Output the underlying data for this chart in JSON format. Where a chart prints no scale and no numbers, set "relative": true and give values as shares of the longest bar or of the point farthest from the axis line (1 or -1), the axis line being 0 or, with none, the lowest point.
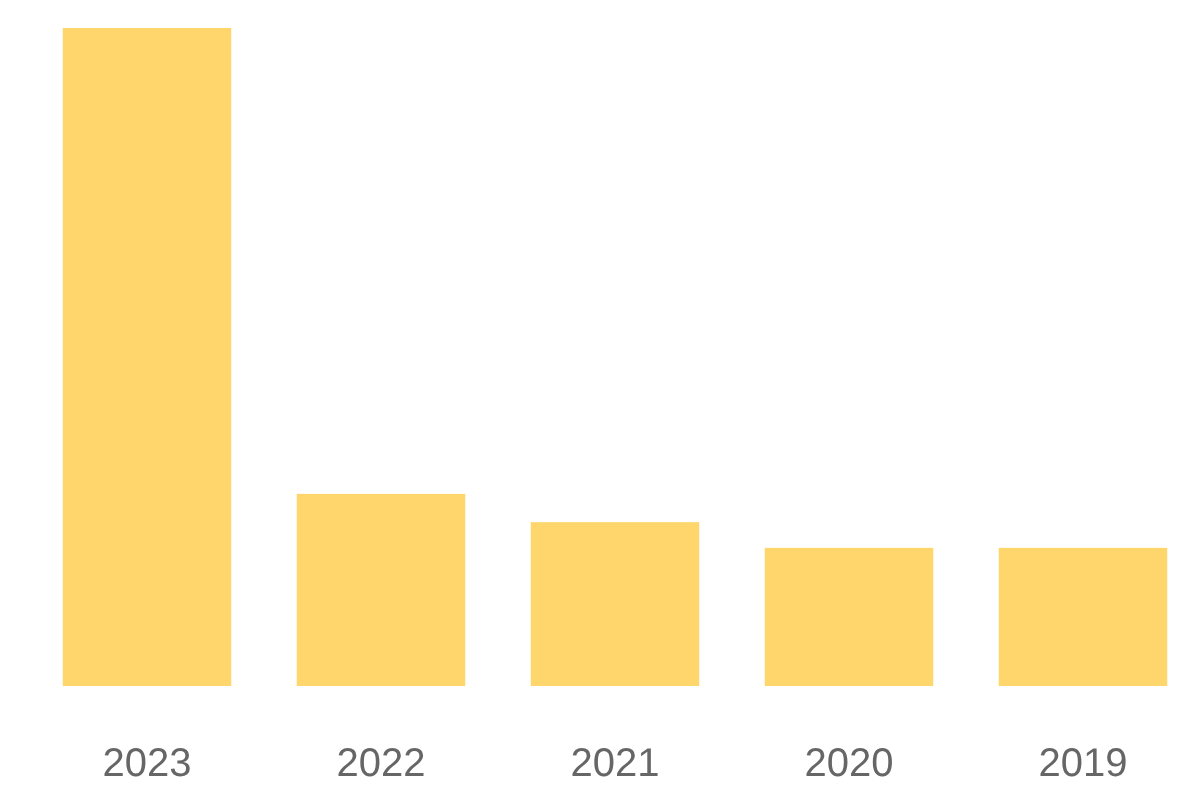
{
  "chart_data": {
    "type": "bar",
    "relative": true,
    "categories": [
      "2023",
      "2022",
      "2021",
      "2020",
      "2019"
    ],
    "values": [
      1,
      0.292,
      0.249,
      0.21,
      0.21
    ],
    "color": "#fed66b"
  }
}
